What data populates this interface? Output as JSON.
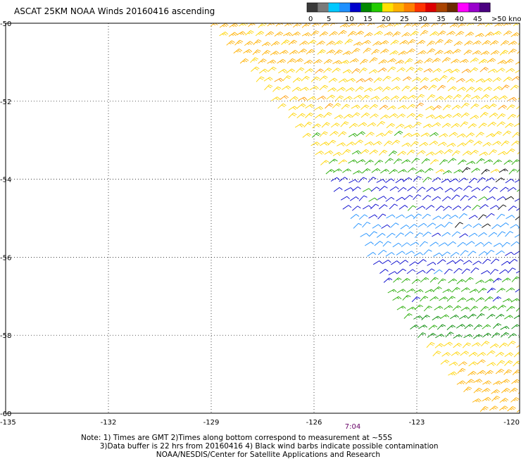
{
  "title": "ASCAT 25KM NOAA Winds 20160416 ascending",
  "legend": {
    "ticks": [
      "0",
      "5",
      "10",
      "15",
      "20",
      "25",
      "30",
      "35",
      "40",
      "45",
      ">50 knots"
    ],
    "colors": [
      "#3a3a3a",
      "#7a7a7a",
      "#00c8ff",
      "#1e90ff",
      "#0000cc",
      "#008800",
      "#22cc00",
      "#ffe000",
      "#ffb000",
      "#ff8000",
      "#ff3300",
      "#dd0000",
      "#aa4400",
      "#6b2a00",
      "#ff00ff",
      "#9900cc",
      "#4a0080"
    ]
  },
  "time_label": "7:04",
  "notes": [
    "Note: 1) Times are GMT 2)Times along bottom correspond to measurement at ~55S",
    "        3)Data buffer is 22 hrs from 20160416 4) Black wind barbs indicate possible contamination",
    "                                NOAA/NESDIS/Center for Satellite Applications and Research"
  ],
  "chart_data": {
    "type": "wind-barb map",
    "title": "ASCAT 25KM NOAA Winds 20160416 ascending",
    "x_ticks": [
      "-135",
      "-132",
      "-129",
      "-126",
      "-123",
      "-120"
    ],
    "y_ticks": [
      "-50",
      "-52",
      "-54",
      "-56",
      "-58",
      "-60"
    ],
    "xlim": [
      -135,
      -120
    ],
    "ylim": [
      -60,
      -50
    ],
    "grid": true,
    "swath_west_edge": [
      [
        -129.2,
        -50
      ],
      [
        -126.2,
        -53.2
      ],
      [
        -123.4,
        -57.8
      ],
      [
        -121.2,
        -60
      ]
    ],
    "wind_bands": [
      {
        "lat_range": [
          -50.0,
          -51.2
        ],
        "color": "#ffb000",
        "speed_kt": 27,
        "accent": "#ffd400"
      },
      {
        "lat_range": [
          -51.2,
          -52.4
        ],
        "color": "#ffd400",
        "speed_kt": 24,
        "accent": "#ff9900"
      },
      {
        "lat_range": [
          -52.4,
          -53.4
        ],
        "color": "#ffd400",
        "speed_kt": 22,
        "accent": "#22aa00"
      },
      {
        "lat_range": [
          -53.4,
          -54.0
        ],
        "color": "#22aa00",
        "speed_kt": 19,
        "accent": "#ffd400"
      },
      {
        "lat_range": [
          -54.0,
          -54.8
        ],
        "color": "#0000cc",
        "speed_kt": 14,
        "accent": "#22aa00"
      },
      {
        "lat_range": [
          -54.8,
          -56.0
        ],
        "color": "#1e90ff",
        "speed_kt": 11,
        "accent": "#0000cc"
      },
      {
        "lat_range": [
          -56.0,
          -56.6
        ],
        "color": "#0000cc",
        "speed_kt": 13,
        "accent": "#1e90ff"
      },
      {
        "lat_range": [
          -56.6,
          -57.4
        ],
        "color": "#22aa00",
        "speed_kt": 17,
        "accent": "#0000cc"
      },
      {
        "lat_range": [
          -57.4,
          -58.2
        ],
        "color": "#008800",
        "speed_kt": 19,
        "accent": "#22aa00"
      },
      {
        "lat_range": [
          -58.2,
          -59.0
        ],
        "color": "#ffd400",
        "speed_kt": 22,
        "accent": "#ffb000"
      },
      {
        "lat_range": [
          -59.0,
          -60.0
        ],
        "color": "#ffb000",
        "speed_kt": 26,
        "accent": "#ffd400"
      }
    ],
    "contaminated_color": "#000000"
  }
}
